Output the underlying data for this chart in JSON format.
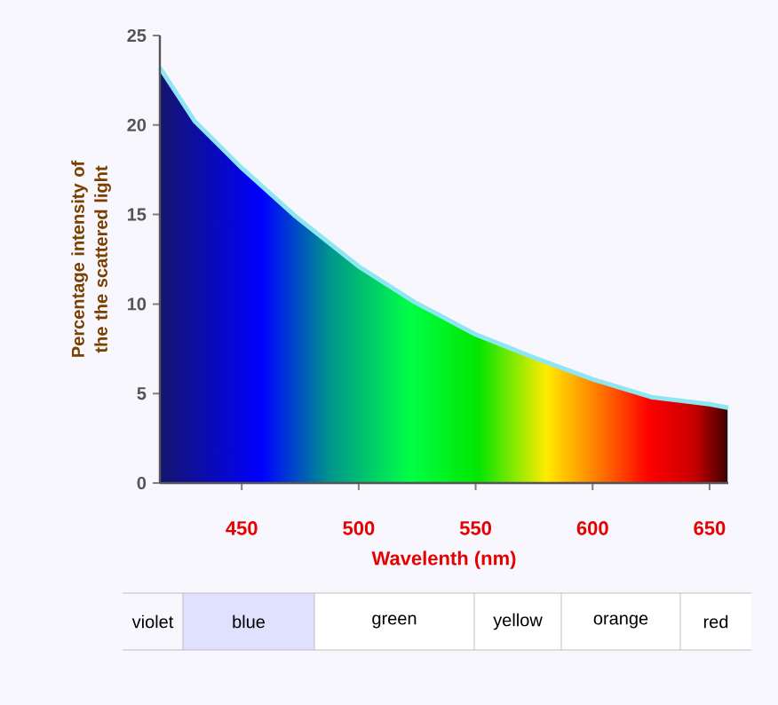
{
  "chart_data": {
    "type": "area",
    "xlabel": "Wavelenth (nm)",
    "ylabel": "Percentage intensity of the the scattered light",
    "x": [
      415,
      430,
      450,
      473,
      500,
      524,
      550,
      575,
      600,
      625,
      650,
      658
    ],
    "series": [
      {
        "color": "#8ee6f2",
        "values": [
          23.2,
          20.2,
          17.6,
          14.9,
          12.1,
          10.1,
          8.3,
          7.0,
          5.8,
          4.8,
          4.4,
          4.2
        ]
      }
    ],
    "xlim": [
      415,
      658
    ],
    "xticks": [
      450,
      500,
      550,
      600,
      650
    ],
    "ylim": [
      0,
      25
    ],
    "yticks": [
      0,
      5,
      10,
      15,
      20,
      25
    ],
    "annotations": [
      "violet",
      "blue",
      "green",
      "yellow",
      "orange",
      "red"
    ]
  }
}
